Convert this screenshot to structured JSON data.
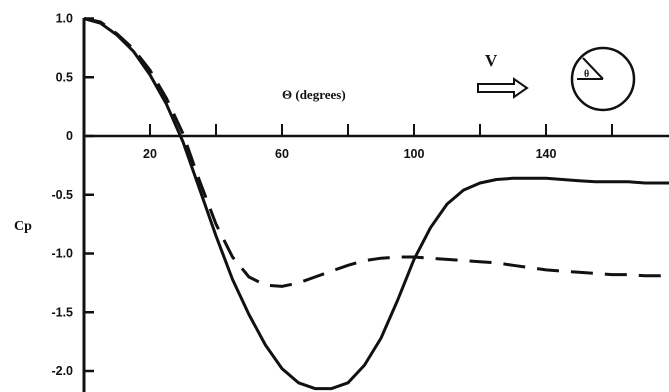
{
  "chart_data": {
    "type": "line",
    "ylabel": "Cp",
    "xlim": [
      0,
      180
    ],
    "ylim": [
      -2.15,
      1.0
    ],
    "x_ticks": [
      "20",
      "60",
      "100",
      "140"
    ],
    "x_ticks_minor": [
      40,
      80,
      120,
      160
    ],
    "y_ticks": [
      "1.0",
      "0.5",
      "0",
      "-0.5",
      "-1.0",
      "-1.5",
      "-2.0"
    ],
    "grid": false,
    "series": [
      {
        "style": "solid",
        "x": [
          0,
          5,
          10,
          15,
          20,
          25,
          30,
          35,
          40,
          45,
          50,
          55,
          60,
          65,
          70,
          75,
          80,
          85,
          90,
          95,
          100,
          105,
          110,
          115,
          120,
          125,
          130,
          135,
          140,
          145,
          150,
          155,
          160,
          165,
          170,
          175,
          180
        ],
        "y": [
          1.0,
          0.96,
          0.86,
          0.72,
          0.52,
          0.27,
          -0.05,
          -0.45,
          -0.85,
          -1.22,
          -1.52,
          -1.78,
          -1.98,
          -2.1,
          -2.15,
          -2.15,
          -2.1,
          -1.95,
          -1.72,
          -1.4,
          -1.05,
          -0.78,
          -0.58,
          -0.46,
          -0.4,
          -0.37,
          -0.36,
          -0.36,
          -0.36,
          -0.37,
          -0.38,
          -0.39,
          -0.39,
          -0.39,
          -0.4,
          -0.4,
          -0.4
        ]
      },
      {
        "style": "dashed",
        "x": [
          0,
          5,
          10,
          15,
          20,
          25,
          30,
          35,
          40,
          45,
          50,
          55,
          60,
          65,
          70,
          75,
          80,
          85,
          90,
          95,
          100,
          105,
          110,
          115,
          120,
          125,
          130,
          135,
          140,
          145,
          150,
          155,
          160,
          165,
          170,
          175,
          180
        ],
        "y": [
          1.0,
          0.97,
          0.87,
          0.74,
          0.56,
          0.32,
          0.02,
          -0.38,
          -0.75,
          -1.03,
          -1.2,
          -1.27,
          -1.28,
          -1.25,
          -1.2,
          -1.15,
          -1.1,
          -1.06,
          -1.04,
          -1.03,
          -1.03,
          -1.04,
          -1.05,
          -1.06,
          -1.07,
          -1.08,
          -1.1,
          -1.12,
          -1.14,
          -1.15,
          -1.16,
          -1.17,
          -1.18,
          -1.18,
          -1.19,
          -1.19,
          -1.2
        ]
      }
    ],
    "annotations": {
      "x_axis_label": "Θ (degrees)",
      "velocity_label": "V"
    }
  }
}
